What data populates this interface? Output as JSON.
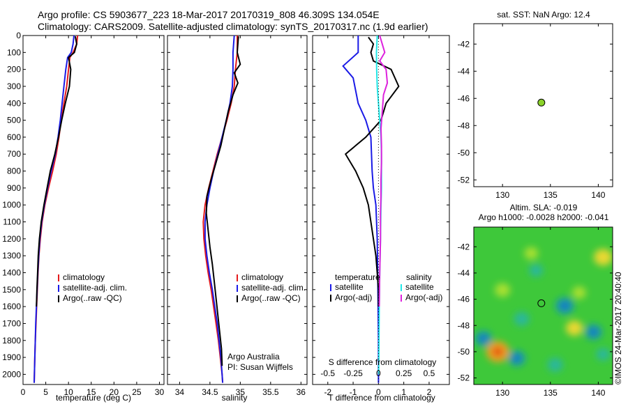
{
  "header": {
    "line1": "Argo profile: CS 5903677_223 18-Mar-2017 20170319_808 46.309S 134.054E",
    "line2": "Climatology: CARS2009. Satellite-adjusted climatology: synTS_20170317.nc (1.9d earlier)"
  },
  "colors": {
    "climatology": "#e41a1c",
    "satellite": "#1a1ae6",
    "argo": "#000000",
    "sat_cyan": "#22e8e8",
    "argo_magenta": "#dd22dd"
  },
  "chart_data": [
    {
      "type": "line",
      "panel": "temperature",
      "xlabel": "temperature (deg C)",
      "xlim": [
        0,
        31
      ],
      "xticks": [
        0,
        5,
        10,
        15,
        20,
        25,
        30
      ],
      "ylim": [
        2060,
        0
      ],
      "yticks": [
        0,
        100,
        200,
        300,
        400,
        500,
        600,
        700,
        800,
        900,
        1000,
        1100,
        1200,
        1300,
        1400,
        1500,
        1600,
        1700,
        1800,
        1900,
        2000
      ],
      "legend": [
        "climatology",
        "satellite-adj. clim.",
        "Argo(..raw -QC)"
      ],
      "series": [
        {
          "name": "climatology",
          "color": "#e41a1c",
          "points": [
            [
              12.0,
              0
            ],
            [
              11.8,
              50
            ],
            [
              11.0,
              100
            ],
            [
              10.3,
              130
            ],
            [
              10.0,
              200
            ],
            [
              9.6,
              300
            ],
            [
              9.0,
              400
            ],
            [
              8.4,
              500
            ],
            [
              7.9,
              600
            ],
            [
              7.3,
              700
            ],
            [
              6.5,
              800
            ],
            [
              5.6,
              900
            ],
            [
              4.8,
              1000
            ],
            [
              4.2,
              1100
            ],
            [
              3.8,
              1200
            ],
            [
              3.5,
              1300
            ],
            [
              3.3,
              1400
            ],
            [
              3.15,
              1500
            ],
            [
              3.0,
              1600
            ],
            [
              2.85,
              1700
            ],
            [
              2.7,
              1800
            ],
            [
              2.6,
              1900
            ],
            [
              2.5,
              2000
            ],
            [
              2.45,
              2050
            ]
          ]
        },
        {
          "name": "satellite-adj. clim.",
          "color": "#1a1ae6",
          "points": [
            [
              11.2,
              0
            ],
            [
              11.0,
              50
            ],
            [
              10.6,
              100
            ],
            [
              9.8,
              130
            ],
            [
              9.4,
              200
            ],
            [
              9.0,
              300
            ],
            [
              8.6,
              400
            ],
            [
              8.2,
              500
            ],
            [
              7.7,
              600
            ],
            [
              7.1,
              700
            ],
            [
              6.2,
              800
            ],
            [
              5.4,
              900
            ],
            [
              4.7,
              1000
            ],
            [
              4.1,
              1100
            ],
            [
              3.7,
              1200
            ],
            [
              3.45,
              1300
            ],
            [
              3.25,
              1400
            ],
            [
              3.1,
              1500
            ],
            [
              2.95,
              1600
            ],
            [
              2.8,
              1700
            ],
            [
              2.7,
              1800
            ],
            [
              2.6,
              1900
            ],
            [
              2.5,
              2000
            ],
            [
              2.45,
              2050
            ]
          ]
        },
        {
          "name": "Argo(..raw -QC)",
          "color": "#000000",
          "points": [
            [
              11.5,
              5
            ],
            [
              11.8,
              50
            ],
            [
              11.3,
              100
            ],
            [
              10.0,
              130
            ],
            [
              10.5,
              200
            ],
            [
              10.2,
              300
            ],
            [
              9.3,
              400
            ],
            [
              8.5,
              500
            ],
            [
              7.8,
              600
            ],
            [
              7.0,
              700
            ],
            [
              6.0,
              800
            ],
            [
              5.3,
              900
            ],
            [
              4.6,
              1000
            ],
            [
              4.0,
              1100
            ],
            [
              3.6,
              1200
            ],
            [
              3.35,
              1300
            ],
            [
              3.2,
              1400
            ],
            [
              3.05,
              1500
            ],
            [
              2.95,
              1600
            ]
          ]
        }
      ]
    },
    {
      "type": "line",
      "panel": "salinity",
      "xlabel": "salinity",
      "xlim": [
        33.8,
        36.1
      ],
      "xticks": [
        34,
        34.5,
        35,
        35.5,
        36
      ],
      "ylim": [
        2060,
        0
      ],
      "legend": [
        "climatology",
        "satellite-adj. clim.",
        "Argo(..raw -QC)"
      ],
      "annotation": [
        "Argo Australia",
        "PI: Susan Wijffels"
      ],
      "series": [
        {
          "name": "climatology",
          "color": "#e41a1c",
          "points": [
            [
              34.95,
              0
            ],
            [
              34.95,
              100
            ],
            [
              34.92,
              200
            ],
            [
              34.9,
              300
            ],
            [
              34.85,
              400
            ],
            [
              34.78,
              500
            ],
            [
              34.7,
              600
            ],
            [
              34.62,
              700
            ],
            [
              34.55,
              800
            ],
            [
              34.48,
              900
            ],
            [
              34.42,
              1000
            ],
            [
              34.39,
              1100
            ],
            [
              34.4,
              1200
            ],
            [
              34.43,
              1300
            ],
            [
              34.47,
              1400
            ],
            [
              34.52,
              1500
            ],
            [
              34.56,
              1600
            ],
            [
              34.6,
              1700
            ],
            [
              34.64,
              1800
            ],
            [
              34.67,
              1900
            ],
            [
              34.7,
              2000
            ],
            [
              34.71,
              2050
            ]
          ]
        },
        {
          "name": "satellite-adj. clim.",
          "color": "#1a1ae6",
          "points": [
            [
              34.9,
              0
            ],
            [
              34.88,
              100
            ],
            [
              34.88,
              200
            ],
            [
              34.87,
              300
            ],
            [
              34.83,
              400
            ],
            [
              34.77,
              500
            ],
            [
              34.7,
              600
            ],
            [
              34.63,
              700
            ],
            [
              34.56,
              800
            ],
            [
              34.5,
              900
            ],
            [
              34.45,
              1000
            ],
            [
              34.42,
              1100
            ],
            [
              34.42,
              1200
            ],
            [
              34.45,
              1300
            ],
            [
              34.49,
              1400
            ],
            [
              34.54,
              1500
            ],
            [
              34.58,
              1600
            ],
            [
              34.62,
              1700
            ],
            [
              34.65,
              1800
            ],
            [
              34.68,
              1900
            ],
            [
              34.7,
              2000
            ],
            [
              34.71,
              2050
            ]
          ]
        },
        {
          "name": "Argo(..raw -QC)",
          "color": "#000000",
          "points": [
            [
              34.97,
              5
            ],
            [
              34.95,
              100
            ],
            [
              35.0,
              170
            ],
            [
              34.9,
              220
            ],
            [
              34.96,
              280
            ],
            [
              34.88,
              350
            ],
            [
              34.8,
              450
            ],
            [
              34.74,
              550
            ],
            [
              34.68,
              650
            ],
            [
              34.6,
              750
            ],
            [
              34.52,
              850
            ],
            [
              34.45,
              950
            ],
            [
              34.44,
              1050
            ],
            [
              34.47,
              1150
            ],
            [
              34.5,
              1250
            ],
            [
              34.54,
              1350
            ],
            [
              34.57,
              1450
            ],
            [
              34.6,
              1550
            ],
            [
              34.63,
              1650
            ],
            [
              34.66,
              1750
            ],
            [
              34.69,
              1850
            ],
            [
              34.7,
              1950
            ]
          ]
        }
      ]
    },
    {
      "type": "line",
      "panel": "difference",
      "xlabel": "T difference from climatology",
      "xlabel_top": "S difference from climatology",
      "xlim": [
        -2.6,
        2.8
      ],
      "xticks": [
        -2,
        -1,
        0,
        1,
        2
      ],
      "xticks_top": [
        -0.5,
        -0.25,
        0,
        0.25,
        0.5
      ],
      "ylim": [
        2060,
        0
      ],
      "legend_temperature": {
        "title": "temperature",
        "items": [
          "satellite",
          "Argo(-adj)"
        ]
      },
      "legend_salinity": {
        "title": "salinity",
        "items": [
          "satellite",
          "Argo(-adj)"
        ]
      },
      "series": [
        {
          "name": "temperature satellite",
          "color": "#1a1ae6",
          "points": [
            [
              -0.8,
              0
            ],
            [
              -0.8,
              100
            ],
            [
              -1.4,
              180
            ],
            [
              -1.0,
              250
            ],
            [
              -0.8,
              400
            ],
            [
              -0.5,
              500
            ],
            [
              -0.3,
              600
            ],
            [
              -0.25,
              800
            ],
            [
              -0.2,
              900
            ],
            [
              -0.1,
              1000
            ],
            [
              -0.05,
              1200
            ],
            [
              -0.02,
              1500
            ],
            [
              0.0,
              1800
            ],
            [
              0.0,
              2050
            ]
          ]
        },
        {
          "name": "temperature Argo(-adj)",
          "color": "#000000",
          "points": [
            [
              -0.4,
              10
            ],
            [
              -0.2,
              50
            ],
            [
              -0.3,
              100
            ],
            [
              -0.2,
              150
            ],
            [
              0.5,
              200
            ],
            [
              0.8,
              300
            ],
            [
              0.3,
              400
            ],
            [
              0.1,
              500
            ],
            [
              -0.5,
              600
            ],
            [
              -1.3,
              700
            ],
            [
              -0.9,
              800
            ],
            [
              -0.6,
              900
            ],
            [
              -0.4,
              1000
            ],
            [
              -0.3,
              1100
            ],
            [
              -0.2,
              1200
            ],
            [
              -0.1,
              1300
            ],
            [
              -0.05,
              1400
            ],
            [
              0.0,
              1500
            ],
            [
              0.0,
              1600
            ]
          ]
        },
        {
          "name": "salinity satellite",
          "color": "#22e8e8",
          "points": [
            [
              -0.05,
              0
            ],
            [
              -0.08,
              100
            ],
            [
              -0.07,
              200
            ],
            [
              -0.05,
              300
            ],
            [
              0.0,
              400
            ],
            [
              0.05,
              500
            ],
            [
              0.1,
              600
            ],
            [
              0.12,
              700
            ],
            [
              0.12,
              800
            ],
            [
              0.12,
              900
            ],
            [
              0.1,
              1000
            ],
            [
              0.08,
              1200
            ],
            [
              0.05,
              1400
            ],
            [
              0.03,
              1600
            ],
            [
              0.02,
              1800
            ],
            [
              0.01,
              2000
            ]
          ]
        },
        {
          "name": "salinity Argo(-adj)",
          "color": "#dd22dd",
          "points": [
            [
              0.05,
              0
            ],
            [
              0.15,
              50
            ],
            [
              0.25,
              100
            ],
            [
              0.05,
              150
            ],
            [
              0.3,
              200
            ],
            [
              0.35,
              280
            ],
            [
              0.2,
              350
            ],
            [
              0.15,
              450
            ],
            [
              0.1,
              550
            ],
            [
              0.12,
              650
            ],
            [
              0.12,
              750
            ],
            [
              0.1,
              850
            ],
            [
              0.1,
              950
            ],
            [
              0.08,
              1050
            ],
            [
              0.08,
              1200
            ],
            [
              0.05,
              1400
            ],
            [
              0.03,
              1600
            ]
          ]
        },
        {
          "name": "zero reference",
          "color": "#000000",
          "dotted": true,
          "points": [
            [
              0,
              0
            ],
            [
              0,
              2050
            ]
          ]
        }
      ]
    },
    {
      "type": "scatter",
      "panel": "sst-map",
      "title": "sat. SST: NaN Argo: 12.4",
      "xlim": [
        127,
        141.5
      ],
      "ylim": [
        -52.5,
        -40.5
      ],
      "xticks": [
        130,
        135,
        140
      ],
      "yticks": [
        -42,
        -44,
        -46,
        -48,
        -50,
        -52
      ],
      "points": [
        {
          "x": 134.054,
          "y": -46.309,
          "color": "#8bd22a"
        }
      ]
    },
    {
      "type": "heatmap",
      "panel": "sla-map",
      "title_line1": "Altim. SLA: -0.019",
      "title_line2": "Argo h1000: -0.0028 h2000: -0.041",
      "xlim": [
        127,
        141.5
      ],
      "ylim": [
        -52.5,
        -40.5
      ],
      "xticks": [
        130,
        135,
        140
      ],
      "yticks": [
        -42,
        -44,
        -46,
        -48,
        -50,
        -52
      ],
      "float_position": {
        "x": 134.054,
        "y": -46.309
      },
      "blobs": [
        {
          "x": 140.5,
          "y": -42.8,
          "value": 0.6
        },
        {
          "x": 138.0,
          "y": -45.5,
          "value": 0.3
        },
        {
          "x": 129.5,
          "y": -50.0,
          "value": 0.9
        },
        {
          "x": 137.5,
          "y": -48.2,
          "value": 0.5
        },
        {
          "x": 130.0,
          "y": -45.3,
          "value": 0.4
        },
        {
          "x": 133.0,
          "y": -42.5,
          "value": 0.3
        },
        {
          "x": 128.0,
          "y": -49.0,
          "value": -0.5
        },
        {
          "x": 136.5,
          "y": -46.5,
          "value": -0.6
        },
        {
          "x": 132.0,
          "y": -47.5,
          "value": -0.4
        },
        {
          "x": 139.5,
          "y": -48.5,
          "value": -0.5
        },
        {
          "x": 131.5,
          "y": -50.5,
          "value": -0.5
        },
        {
          "x": 135.5,
          "y": -51.0,
          "value": -0.4
        },
        {
          "x": 133.5,
          "y": -43.8,
          "value": -0.3
        },
        {
          "x": 140.5,
          "y": -50.2,
          "value": -0.3
        }
      ]
    }
  ],
  "credit": "©IMOS 24-Mar-2017 20:40:40"
}
